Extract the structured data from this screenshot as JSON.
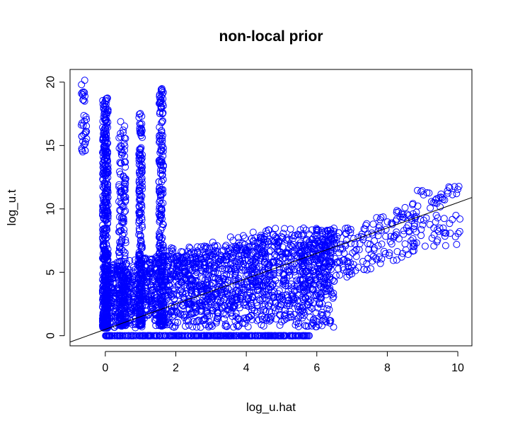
{
  "chart_data": {
    "type": "scatter",
    "title": "non-local prior",
    "xlabel": "log_u.hat",
    "ylabel": "log_u.t",
    "xlim": [
      -1.0,
      10.4
    ],
    "ylim": [
      -0.8,
      21.0
    ],
    "x_ticks": [
      0,
      2,
      4,
      6,
      8,
      10
    ],
    "y_ticks": [
      0,
      5,
      10,
      15,
      20
    ],
    "grid": false,
    "legend": "none",
    "point_color": "#0000ff",
    "point_shape": "open-circle",
    "reference_line": {
      "intercept": 0.5,
      "slope": 1.0,
      "color": "#000000"
    },
    "clusters": [
      {
        "name": "x0-column",
        "x": [
          -0.08,
          0.08
        ],
        "y": [
          0.6,
          18.8
        ],
        "n": 500
      },
      {
        "name": "x-neg-column",
        "x": [
          -0.68,
          -0.52
        ],
        "y": [
          14.5,
          20.5
        ],
        "n": 35
      },
      {
        "name": "x05-column",
        "x": [
          0.38,
          0.58
        ],
        "y": [
          0.8,
          17.0
        ],
        "n": 220
      },
      {
        "name": "x1-column",
        "x": [
          0.95,
          1.05
        ],
        "y": [
          0.8,
          17.6
        ],
        "n": 220
      },
      {
        "name": "x16-column",
        "x": [
          1.52,
          1.65
        ],
        "y": [
          0.8,
          19.5
        ],
        "n": 240
      },
      {
        "name": "main-cloud",
        "x": [
          0.0,
          6.5
        ],
        "y": [
          0.6,
          8.5
        ],
        "n": 1900
      },
      {
        "name": "trend-spread",
        "x": [
          5.5,
          8.8
        ],
        "y": [
          3.5,
          10.5
        ],
        "n": 260
      },
      {
        "name": "far-right",
        "x": [
          8.8,
          10.1
        ],
        "y": [
          7.0,
          11.8
        ],
        "n": 70
      },
      {
        "name": "zero-row",
        "x": [
          0.0,
          5.8
        ],
        "y": [
          0.0,
          0.0
        ],
        "n": 320
      }
    ]
  }
}
